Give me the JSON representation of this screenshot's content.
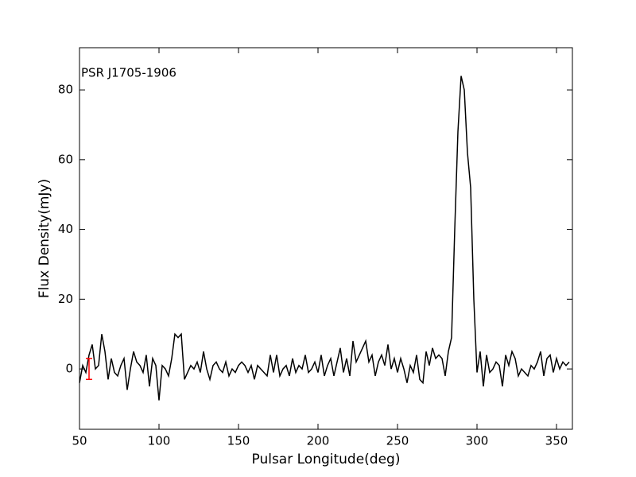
{
  "chart_data": {
    "type": "line",
    "annotation": "PSR J1705-1906",
    "xlabel": "Pulsar Longitude(deg)",
    "ylabel": "Flux Density(mJy)",
    "xlim": [
      50,
      360
    ],
    "ylim": [
      -17.3,
      92.1
    ],
    "xticks": [
      50,
      100,
      150,
      200,
      250,
      300,
      350
    ],
    "yticks": [
      0,
      20,
      40,
      60,
      80
    ],
    "grid": false,
    "x": [
      50,
      52,
      54,
      56,
      58,
      60,
      62,
      64,
      66,
      68,
      70,
      72,
      74,
      76,
      78,
      80,
      82,
      84,
      86,
      88,
      90,
      92,
      94,
      96,
      98,
      100,
      102,
      104,
      106,
      108,
      110,
      112,
      114,
      116,
      118,
      120,
      122,
      124,
      126,
      128,
      130,
      132,
      134,
      136,
      138,
      140,
      142,
      144,
      146,
      148,
      150,
      152,
      154,
      156,
      158,
      160,
      162,
      164,
      166,
      168,
      170,
      172,
      174,
      176,
      178,
      180,
      182,
      184,
      186,
      188,
      190,
      192,
      194,
      196,
      198,
      200,
      202,
      204,
      206,
      208,
      210,
      212,
      214,
      216,
      218,
      220,
      222,
      224,
      226,
      228,
      230,
      232,
      234,
      236,
      238,
      240,
      242,
      244,
      246,
      248,
      250,
      252,
      254,
      256,
      258,
      260,
      262,
      264,
      266,
      268,
      270,
      272,
      274,
      276,
      278,
      280,
      282,
      284,
      286,
      288,
      290,
      292,
      294,
      296,
      298,
      300,
      302,
      304,
      306,
      308,
      310,
      312,
      314,
      316,
      318,
      320,
      322,
      324,
      326,
      328,
      330,
      332,
      334,
      336,
      338,
      340,
      342,
      344,
      346,
      348,
      350,
      352,
      354,
      356,
      358
    ],
    "series": [
      {
        "color": "#000000",
        "values": [
          -4,
          1,
          -1,
          4,
          7,
          0,
          1,
          10,
          5,
          -3,
          3,
          -1,
          -2,
          1,
          3,
          -6,
          0,
          5,
          2,
          1,
          -1,
          4,
          -5,
          3,
          1,
          -9,
          1,
          0,
          -2,
          3,
          10,
          9,
          10,
          -3,
          -1,
          1,
          0,
          2,
          -1,
          5,
          0,
          -3,
          1,
          2,
          0,
          -1,
          2,
          -2,
          0,
          -1,
          1,
          2,
          1,
          -1,
          1,
          -3,
          1,
          0,
          -1,
          -2,
          4,
          -1,
          4,
          -2,
          0,
          1,
          -2,
          3,
          -1,
          1,
          0,
          4,
          -1,
          0,
          2,
          -1,
          4,
          -2,
          1,
          3,
          -2,
          2,
          6,
          -1,
          3,
          -2,
          8,
          2,
          4,
          6,
          8,
          2,
          4,
          -2,
          2,
          4,
          1,
          7,
          0,
          3,
          -1,
          3,
          0,
          -4,
          1,
          -1,
          4,
          -3,
          -4,
          5,
          1,
          6,
          3,
          4,
          3,
          -2,
          5,
          9,
          40,
          68,
          84,
          80,
          62,
          52,
          20,
          -1,
          5,
          -5,
          4,
          -1,
          0,
          2,
          1,
          -5,
          4,
          1,
          5,
          3,
          -2,
          0,
          -1,
          -2,
          1,
          0,
          2,
          5,
          -2,
          3,
          4,
          -1,
          3,
          0,
          2,
          1,
          2
        ]
      }
    ],
    "error_bar": {
      "x": 56,
      "y": 0,
      "error": 3,
      "color": "#ff0000"
    }
  }
}
